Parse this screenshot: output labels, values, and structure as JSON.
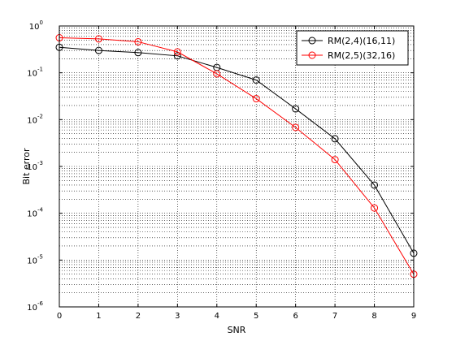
{
  "chart_data": {
    "type": "line",
    "xlabel": "SNR",
    "ylabel": "Bit error",
    "xscale": "linear",
    "yscale": "log",
    "xlim": [
      0,
      9
    ],
    "ylim": [
      1e-06,
      1
    ],
    "grid": true,
    "legend_position": "top-right",
    "x_ticks": [
      "0",
      "1",
      "2",
      "3",
      "4",
      "5",
      "6",
      "7",
      "8",
      "9"
    ],
    "y_ticks": [
      {
        "value": 1e-06,
        "base": "10",
        "exp": "-6"
      },
      {
        "value": 1e-05,
        "base": "10",
        "exp": "-5"
      },
      {
        "value": 0.0001,
        "base": "10",
        "exp": "-4"
      },
      {
        "value": 0.001,
        "base": "10",
        "exp": "-3"
      },
      {
        "value": 0.01,
        "base": "10",
        "exp": "-2"
      },
      {
        "value": 0.1,
        "base": "10",
        "exp": "-1"
      },
      {
        "value": 1,
        "base": "10",
        "exp": "0"
      }
    ],
    "x": [
      0,
      1,
      2,
      3,
      4,
      5,
      6,
      7,
      8,
      9
    ],
    "series": [
      {
        "name": "RM(2,4)(16,11)",
        "color": "#000000",
        "marker": "circle",
        "values": [
          0.35,
          0.3,
          0.27,
          0.23,
          0.13,
          0.07,
          0.017,
          0.0039,
          0.0004,
          1.4e-05
        ]
      },
      {
        "name": "RM(2,5)(32,16)",
        "color": "#ff0000",
        "marker": "circle",
        "values": [
          0.56,
          0.53,
          0.46,
          0.28,
          0.095,
          0.028,
          0.0068,
          0.0014,
          0.00013,
          5e-06
        ]
      }
    ]
  }
}
